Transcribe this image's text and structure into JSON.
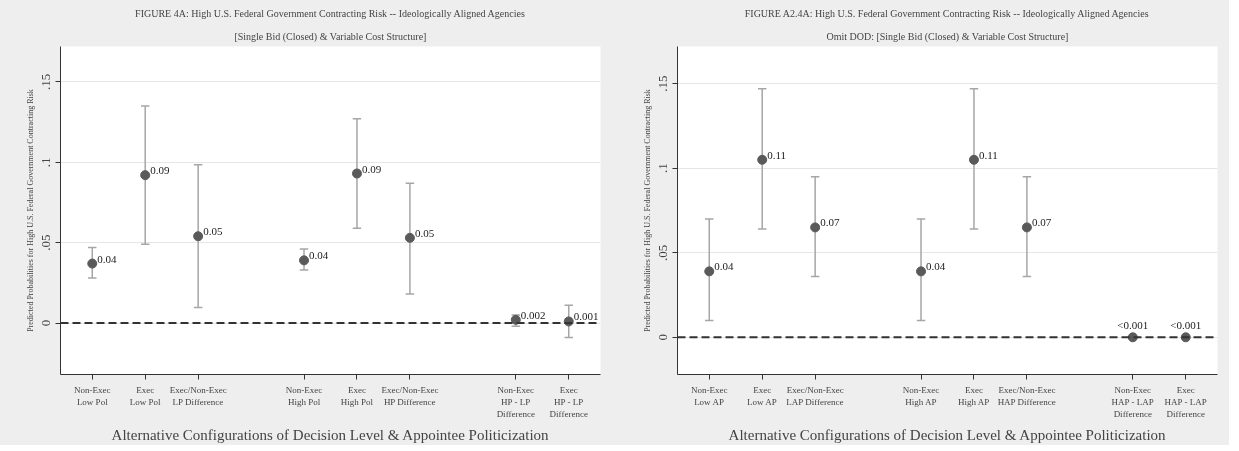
{
  "chart_data": [
    {
      "type": "scatter",
      "title": "FIGURE 4A: High U.S. Federal Government Contracting Risk -- Ideologically Aligned Agencies",
      "subtitle": "[Single Bid (Closed) & Variable Cost Structure]",
      "xlabel": "Alternative Configurations of Decision Level & Appointee Politicization",
      "ylabel": "Predicted Probabilities for High U.S. Federal Government Contracting Risk",
      "categories": [
        "Non-Exec\nLow Pol",
        "Exec\nLow Pol",
        "Exec/Non-Exec\nLP Difference",
        null,
        "Non-Exec\nHigh Pol",
        "Exec\nHigh Pol",
        "Exec/Non-Exec\nHP Difference",
        null,
        "Non-Exec\nHP - LP\nDifference",
        "Exec\nHP - LP\nDifference"
      ],
      "values": [
        0.037,
        0.092,
        0.054,
        null,
        0.039,
        0.093,
        0.053,
        null,
        0.002,
        0.001
      ],
      "errors": [
        [
          0.028,
          0.047
        ],
        [
          0.049,
          0.135
        ],
        [
          0.0096,
          0.0985
        ],
        null,
        [
          0.033,
          0.046
        ],
        [
          0.059,
          0.127
        ],
        [
          0.018,
          0.087
        ],
        null,
        [
          -0.002,
          0.005
        ],
        [
          -0.009,
          0.011
        ]
      ],
      "value_labels": [
        "0.04",
        "0.09",
        "0.05",
        null,
        "0.04",
        "0.09",
        "0.05",
        null,
        "0.002",
        "0.001"
      ],
      "color": "#5a5a5a",
      "marker": "circle",
      "grid": "y",
      "ylim": [
        -0.032,
        0.172
      ],
      "yticks": [
        0,
        {
          "value": 0.05,
          "label": ".05"
        },
        {
          "value": 0.1,
          "label": ".1"
        },
        {
          "value": 0.15,
          "label": ".15"
        }
      ],
      "ref_lines": [
        {
          "axis": "y",
          "value": 0,
          "color": "#333333",
          "line_style": "dashed"
        }
      ]
    },
    {
      "type": "scatter",
      "title": "FIGURE A2.4A: High U.S. Federal Government Contracting Risk -- Ideologically Aligned Agencies",
      "subtitle": "Omit DOD: [Single Bid (Closed) & Variable Cost Structure]",
      "xlabel": "Alternative Configurations of Decision Level & Appointee Politicization",
      "ylabel": "Predicted Probabilities for High U.S. Federal Government Contracting Risk",
      "categories": [
        "Non-Exec\nLow AP",
        "Exec\nLow AP",
        "Exec/Non-Exec\nLAP Difference",
        null,
        "Non-Exec\nHigh AP",
        "Exec\nHigh AP",
        "Exec/Non-Exec\nHAP Difference",
        null,
        "Non-Exec\nHAP - LAP\nDifference",
        "Exec\nHAP - LAP\nDifference"
      ],
      "values": [
        0.039,
        0.105,
        0.065,
        null,
        0.039,
        0.105,
        0.065,
        null,
        0,
        0
      ],
      "errors": [
        [
          0.01,
          0.07
        ],
        [
          0.064,
          0.147
        ],
        [
          0.036,
          0.095
        ],
        null,
        [
          0.01,
          0.07
        ],
        [
          0.064,
          0.147
        ],
        [
          0.036,
          0.095
        ],
        null,
        null,
        null
      ],
      "value_labels": [
        "0.04",
        "0.11",
        "0.07",
        null,
        "0.04",
        "0.11",
        "0.07",
        null,
        "<0.001",
        "<0.001"
      ],
      "color": "#5a5a5a",
      "marker": "circle",
      "grid": "y",
      "ylim": [
        -0.022,
        0.172
      ],
      "yticks": [
        0,
        {
          "value": 0.05,
          "label": ".05"
        },
        {
          "value": 0.1,
          "label": ".1"
        },
        {
          "value": 0.15,
          "label": ".15"
        }
      ],
      "ref_lines": [
        {
          "axis": "y",
          "value": 0,
          "color": "#333333",
          "line_style": "dashed"
        }
      ]
    }
  ]
}
